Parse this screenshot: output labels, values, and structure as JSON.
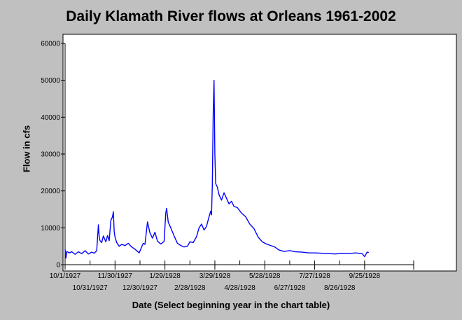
{
  "chart_data": {
    "type": "line",
    "title": "Daily Klamath River flows at Orleans 1961-2002",
    "xlabel": "Date (Select beginning year in the chart table)",
    "ylabel": "Flow in cfs",
    "ylim": [
      0,
      60000
    ],
    "xlim": [
      "1927-10-01",
      "1928-11-23"
    ],
    "yticks": [
      0,
      10000,
      20000,
      30000,
      40000,
      50000,
      60000
    ],
    "xticks_row1": [
      "10/1/1927",
      "11/30/1927",
      "1/29/1928",
      "3/29/1928",
      "5/28/1928",
      "7/27/1928",
      "9/25/1928"
    ],
    "xticks_row2": [
      "10/31/1927",
      "12/30/1927",
      "2/28/1928",
      "4/28/1928",
      "6/27/1928",
      "8/26/1928"
    ],
    "grid": false,
    "legend": "none",
    "line_color": "#0000ff",
    "series": [
      {
        "x": [
          "1927-10-01",
          "1927-10-02",
          "1927-10-03",
          "1927-10-06",
          "1927-10-09",
          "1927-10-13",
          "1927-10-17",
          "1927-10-21",
          "1927-10-25",
          "1927-10-29",
          "1927-11-02",
          "1927-11-05",
          "1927-11-08",
          "1927-11-10",
          "1927-11-11",
          "1927-11-12",
          "1927-11-14",
          "1927-11-16",
          "1927-11-19",
          "1927-11-21",
          "1927-11-23",
          "1927-11-25",
          "1927-11-27",
          "1927-11-28",
          "1927-11-29",
          "1927-11-30",
          "1927-12-02",
          "1927-12-05",
          "1927-12-08",
          "1927-12-12",
          "1927-12-16",
          "1927-12-20",
          "1927-12-24",
          "1927-12-27",
          "1927-12-29",
          "1928-01-01",
          "1928-01-03",
          "1928-01-05",
          "1928-01-08",
          "1928-01-11",
          "1928-01-14",
          "1928-01-17",
          "1928-01-20",
          "1928-01-24",
          "1928-01-28",
          "1928-01-30",
          "1928-01-31",
          "1928-02-02",
          "1928-02-05",
          "1928-02-09",
          "1928-02-13",
          "1928-02-17",
          "1928-02-21",
          "1928-02-25",
          "1928-02-28",
          "1928-03-03",
          "1928-03-07",
          "1928-03-10",
          "1928-03-13",
          "1928-03-16",
          "1928-03-19",
          "1928-03-22",
          "1928-03-24",
          "1928-03-25",
          "1928-03-26",
          "1928-03-27",
          "1928-03-28",
          "1928-03-29",
          "1928-03-30",
          "1928-04-01",
          "1928-04-03",
          "1928-04-06",
          "1928-04-09",
          "1928-04-12",
          "1928-04-15",
          "1928-04-18",
          "1928-04-21",
          "1928-04-25",
          "1928-04-30",
          "1928-05-05",
          "1928-05-10",
          "1928-05-15",
          "1928-05-20",
          "1928-05-25",
          "1928-05-30",
          "1928-06-04",
          "1928-06-09",
          "1928-06-14",
          "1928-06-20",
          "1928-06-27",
          "1928-07-04",
          "1928-07-12",
          "1928-07-20",
          "1928-07-28",
          "1928-08-05",
          "1928-08-13",
          "1928-08-21",
          "1928-08-29",
          "1928-09-06",
          "1928-09-14",
          "1928-09-22",
          "1928-09-25",
          "1928-09-28",
          "1928-09-30"
        ],
        "y": [
          4200,
          1800,
          3600,
          3200,
          3500,
          2800,
          3500,
          3000,
          3800,
          2900,
          3400,
          3100,
          3800,
          10800,
          7500,
          6500,
          6000,
          7800,
          6200,
          7900,
          6500,
          12000,
          13000,
          14400,
          9000,
          7500,
          6000,
          5000,
          5500,
          5200,
          5800,
          4800,
          4200,
          3600,
          3200,
          4800,
          5800,
          5500,
          11600,
          8600,
          7200,
          8800,
          6400,
          5600,
          6300,
          14000,
          15300,
          11500,
          10000,
          7800,
          5800,
          5200,
          4800,
          5000,
          6200,
          6000,
          7600,
          10000,
          11000,
          9400,
          10400,
          13000,
          14500,
          13500,
          22000,
          41000,
          50000,
          30000,
          22000,
          21000,
          19000,
          17500,
          19500,
          18000,
          16500,
          17200,
          15800,
          15500,
          14000,
          13000,
          11000,
          9800,
          7500,
          6200,
          5600,
          5200,
          4800,
          4000,
          3600,
          3800,
          3500,
          3400,
          3200,
          3200,
          3100,
          3000,
          2900,
          3100,
          3000,
          3200,
          3000,
          2200,
          3400,
          3300
        ]
      }
    ]
  }
}
